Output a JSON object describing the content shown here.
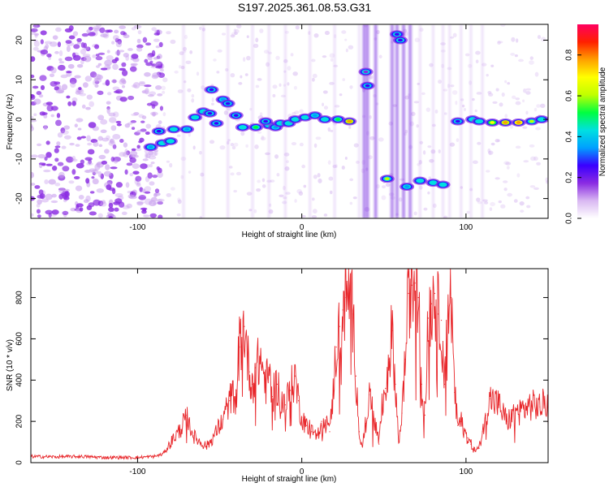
{
  "title": "S197.2025.361.08.53.G31",
  "chart_data": [
    {
      "type": "heatmap",
      "xlabel": "Height of straight line (km)",
      "ylabel": "Frequency (Hz)",
      "xlim": [
        -165,
        150
      ],
      "ylim": [
        -25,
        24
      ],
      "xticks": [
        -100,
        0,
        100
      ],
      "xtick_labels": [
        "-100",
        "0",
        "100"
      ],
      "yticks": [
        -20,
        -10,
        0,
        10,
        20
      ],
      "ytick_labels": [
        "-20",
        "-10",
        "0",
        "10",
        "20"
      ],
      "colorbar": {
        "label": "Normalized spectral amplitude",
        "range": [
          0,
          0.95
        ],
        "ticks": [
          0.0,
          0.2,
          0.4,
          0.6,
          0.8
        ],
        "tick_labels": [
          "0.0",
          "0.2",
          "0.4",
          "0.6",
          "0.8"
        ],
        "colormap": [
          "#ffffff",
          "#d9b8f2",
          "#8a2be2",
          "#3a00ff",
          "#00a0ff",
          "#00e0e0",
          "#00ff40",
          "#c0ff00",
          "#ffff00",
          "#ffa000",
          "#ff2000",
          "#ff0060"
        ]
      },
      "blobs": [
        {
          "x": -92,
          "y": -7,
          "v": 0.35
        },
        {
          "x": -85,
          "y": -6,
          "v": 0.4
        },
        {
          "x": -80,
          "y": -5.5,
          "v": 0.45
        },
        {
          "x": -87,
          "y": -3,
          "v": 0.3
        },
        {
          "x": -78,
          "y": -2.5,
          "v": 0.4
        },
        {
          "x": -70,
          "y": -2.5,
          "v": 0.35
        },
        {
          "x": -65,
          "y": 0.5,
          "v": 0.45
        },
        {
          "x": -60,
          "y": 2,
          "v": 0.4
        },
        {
          "x": -56,
          "y": 1.5,
          "v": 0.3
        },
        {
          "x": -55,
          "y": 7.5,
          "v": 0.3
        },
        {
          "x": -48,
          "y": 5,
          "v": 0.35
        },
        {
          "x": -52,
          "y": -1,
          "v": 0.3
        },
        {
          "x": -45,
          "y": 4,
          "v": 0.25
        },
        {
          "x": -40,
          "y": 1,
          "v": 0.3
        },
        {
          "x": -36,
          "y": -2,
          "v": 0.45
        },
        {
          "x": -28,
          "y": -2,
          "v": 0.55
        },
        {
          "x": -20,
          "y": -1.5,
          "v": 0.45
        },
        {
          "x": -16,
          "y": -2,
          "v": 0.35
        },
        {
          "x": -22,
          "y": -0.5,
          "v": 0.3
        },
        {
          "x": -13,
          "y": -1,
          "v": 0.4
        },
        {
          "x": -8,
          "y": -1,
          "v": 0.45
        },
        {
          "x": -4,
          "y": 0,
          "v": 0.4
        },
        {
          "x": 2,
          "y": 0.5,
          "v": 0.45
        },
        {
          "x": 8,
          "y": 1,
          "v": 0.35
        },
        {
          "x": 14,
          "y": 0,
          "v": 0.45
        },
        {
          "x": 22,
          "y": 0,
          "v": 0.5
        },
        {
          "x": 29,
          "y": -0.5,
          "v": 0.75
        },
        {
          "x": 40,
          "y": 8.5,
          "v": 0.3
        },
        {
          "x": 39,
          "y": 12,
          "v": 0.2
        },
        {
          "x": 58,
          "y": 21.5,
          "v": 0.3
        },
        {
          "x": 60,
          "y": 20,
          "v": 0.25
        },
        {
          "x": 52,
          "y": -15,
          "v": 0.6
        },
        {
          "x": 64,
          "y": -17,
          "v": 0.35
        },
        {
          "x": 72,
          "y": -15.5,
          "v": 0.45
        },
        {
          "x": 80,
          "y": -16,
          "v": 0.4
        },
        {
          "x": 86,
          "y": -16.5,
          "v": 0.4
        },
        {
          "x": 95,
          "y": -0.5,
          "v": 0.3
        },
        {
          "x": 104,
          "y": 0,
          "v": 0.4
        },
        {
          "x": 108,
          "y": -0.5,
          "v": 0.45
        },
        {
          "x": 116,
          "y": -0.8,
          "v": 0.65
        },
        {
          "x": 124,
          "y": -0.8,
          "v": 0.75
        },
        {
          "x": 132,
          "y": -0.8,
          "v": 0.8
        },
        {
          "x": 140,
          "y": -0.5,
          "v": 0.6
        },
        {
          "x": 146,
          "y": 0,
          "v": 0.45
        }
      ]
    },
    {
      "type": "line",
      "xlabel": "Height of straight line (km)",
      "ylabel": "SNR (10 * v/v)",
      "xlim": [
        -165,
        150
      ],
      "ylim": [
        0,
        940
      ],
      "xticks": [
        -100,
        0,
        100
      ],
      "xtick_labels": [
        "-100",
        "0",
        "100"
      ],
      "yticks": [
        0,
        200,
        400,
        600,
        800
      ],
      "ytick_labels": [
        "0",
        "200",
        "400",
        "600",
        "800"
      ],
      "series": [
        {
          "name": "SNR",
          "color": "#e8262a",
          "x": [
            -165,
            -150,
            -135,
            -120,
            -100,
            -90,
            -85,
            -82,
            -78,
            -74,
            -70,
            -66,
            -62,
            -58,
            -55,
            -52,
            -48,
            -44,
            -40,
            -38,
            -35,
            -32,
            -30,
            -28,
            -25,
            -22,
            -20,
            -18,
            -15,
            -12,
            -10,
            -7,
            -4,
            -2,
            0,
            3,
            6,
            9,
            12,
            15,
            17,
            19,
            21,
            23,
            25,
            27,
            29,
            31,
            33,
            35,
            37,
            39,
            41,
            43,
            45,
            47,
            49,
            51,
            53,
            55,
            57,
            59,
            61,
            63,
            65,
            67,
            69,
            71,
            73,
            75,
            77,
            79,
            81,
            83,
            85,
            87,
            89,
            91,
            93,
            95,
            97,
            99,
            101,
            103,
            105,
            108,
            110,
            112,
            115,
            120,
            125,
            130,
            135,
            140,
            145,
            150
          ],
          "values": [
            30,
            28,
            30,
            25,
            25,
            30,
            40,
            70,
            120,
            160,
            230,
            130,
            100,
            80,
            110,
            150,
            210,
            300,
            350,
            560,
            660,
            440,
            380,
            460,
            500,
            380,
            430,
            320,
            380,
            300,
            280,
            350,
            420,
            300,
            220,
            180,
            150,
            120,
            200,
            220,
            150,
            330,
            560,
            660,
            740,
            800,
            820,
            720,
            420,
            150,
            80,
            190,
            330,
            260,
            180,
            90,
            280,
            360,
            500,
            640,
            380,
            100,
            240,
            500,
            820,
            860,
            870,
            800,
            380,
            230,
            700,
            770,
            820,
            720,
            690,
            380,
            760,
            800,
            340,
            180,
            200,
            150,
            120,
            90,
            60,
            70,
            150,
            230,
            310,
            280,
            200,
            240,
            260,
            280,
            270,
            300
          ]
        }
      ]
    }
  ]
}
